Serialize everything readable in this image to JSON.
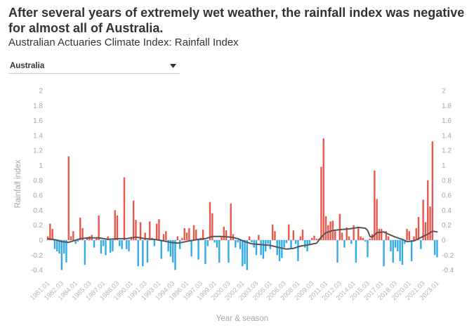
{
  "region_selector": {
    "selected": "Australia",
    "icon": "chevron-down-icon"
  },
  "colors": {
    "positive_bar": "#e9574c",
    "negative_bar": "#31aaea",
    "trend_line": "#555555",
    "zero_line": "#d6d6d6"
  },
  "chart_data": {
    "type": "bar",
    "title": "After several years of extremely wet weather, the rainfall index was negative for almost all of Australia.",
    "subtitle": "Australian Actuaries Climate Index: Rainfall Index",
    "xlabel": "Year & season",
    "ylabel": "Rainfall index",
    "ylim": [
      -0.4,
      2
    ],
    "yticks": [
      2,
      1.8,
      1.6,
      1.4,
      1.2,
      1,
      0.8,
      0.6,
      0.4,
      0.2,
      0,
      -0.2,
      -0.4
    ],
    "y_axis_sides": "left-and-right",
    "grid": false,
    "x_tick_step": 6,
    "x_ticks": [
      "1981.01",
      "1982.03",
      "1984.01",
      "1985.03",
      "1987.01",
      "1988.03",
      "1990.01",
      "1991.03",
      "1993.01",
      "1994.03",
      "1996.01",
      "1997.03",
      "1999.01",
      "2000.03",
      "2002.01",
      "2003.03",
      "2005.01",
      "2006.03",
      "2008.01",
      "2009.03",
      "2011.01",
      "2012.03",
      "2014.01",
      "2015.03",
      "2017.01",
      "2018.03",
      "2020.01",
      "2021.03",
      "2023.01"
    ],
    "values": [
      0.05,
      0.22,
      0.15,
      -0.12,
      -0.15,
      -0.18,
      -0.4,
      -0.18,
      -0.3,
      1.12,
      0.05,
      0.12,
      -0.05,
      -0.02,
      0.3,
      0.16,
      -0.33,
      0.04,
      0.05,
      0.07,
      -0.1,
      0.02,
      0.33,
      -0.18,
      -0.08,
      -0.2,
      0.05,
      -0.17,
      -0.15,
      0.4,
      0.33,
      -0.08,
      -0.12,
      0.84,
      -0.12,
      -0.15,
      0.04,
      0.53,
      0.27,
      -0.35,
      0.24,
      -0.35,
      0.1,
      -0.3,
      0.25,
      0.03,
      -0.08,
      0.22,
      0.28,
      -0.25,
      0.08,
      0.12,
      -0.15,
      -0.22,
      -0.3,
      -0.4,
      0.05,
      -0.12,
      0.03,
      0.16,
      0.1,
      0.16,
      -0.22,
      0.2,
      0.14,
      -0.26,
      0.03,
      0.14,
      -0.32,
      -0.08,
      0.51,
      0.36,
      -0.03,
      -0.1,
      -0.3,
      0.04,
      0.18,
      0.13,
      -0.3,
      0.49,
      0.08,
      -0.1,
      -0.03,
      -0.12,
      -0.35,
      -0.32,
      -0.4,
      0.05,
      -0.03,
      -0.1,
      -0.2,
      0.07,
      -0.2,
      -0.25,
      -0.15,
      -0.05,
      -0.12,
      0.21,
      0.12,
      -0.2,
      -0.28,
      -0.24,
      -0.1,
      -0.04,
      0.21,
      -0.12,
      0.13,
      -0.05,
      -0.28,
      0.05,
      0.14,
      -0.1,
      -0.15,
      -0.05,
      0.03,
      0.06,
      0.02,
      0.02,
      0.98,
      1.36,
      0.32,
      0.2,
      0.25,
      0.26,
      0.12,
      -0.3,
      0.35,
      0.1,
      -0.1,
      0.17,
      0.05,
      -0.05,
      0.2,
      -0.3,
      0.18,
      0.05,
      0.03,
      -0.02,
      -0.23,
      0.02,
      0.08,
      0.93,
      0.55,
      0.15,
      0.15,
      -0.35,
      0.12,
      0.05,
      -0.15,
      -0.3,
      -0.1,
      -0.15,
      -0.28,
      -0.33,
      -0.05,
      0.15,
      0.12,
      -0.28,
      0.05,
      0.16,
      0.31,
      -0.12,
      0.54,
      0.24,
      0.8,
      0.45,
      1.32,
      -0.2,
      -0.23
    ],
    "trend": [
      [
        0,
        0.02
      ],
      [
        4,
        0.0
      ],
      [
        6,
        -0.02
      ],
      [
        9,
        -0.03
      ],
      [
        11,
        -0.01
      ],
      [
        14,
        0.02
      ],
      [
        18,
        0.03
      ],
      [
        22,
        0.03
      ],
      [
        26,
        0.01
      ],
      [
        30,
        0.02
      ],
      [
        34,
        0.02
      ],
      [
        38,
        0.04
      ],
      [
        42,
        0.02
      ],
      [
        46,
        0.01
      ],
      [
        50,
        -0.01
      ],
      [
        53,
        -0.03
      ],
      [
        56,
        -0.04
      ],
      [
        58,
        -0.03
      ],
      [
        61,
        -0.01
      ],
      [
        65,
        0.01
      ],
      [
        68,
        0.02
      ],
      [
        71,
        0.05
      ],
      [
        75,
        0.05
      ],
      [
        79,
        0.04
      ],
      [
        82,
        0.02
      ],
      [
        85,
        -0.02
      ],
      [
        88,
        -0.05
      ],
      [
        92,
        -0.06
      ],
      [
        96,
        -0.07
      ],
      [
        100,
        -0.1
      ],
      [
        103,
        -0.12
      ],
      [
        106,
        -0.11
      ],
      [
        109,
        -0.08
      ],
      [
        113,
        -0.06
      ],
      [
        116,
        -0.04
      ],
      [
        118,
        0.04
      ],
      [
        120,
        0.1
      ],
      [
        123,
        0.13
      ],
      [
        126,
        0.14
      ],
      [
        130,
        0.15
      ],
      [
        134,
        0.17
      ],
      [
        137,
        0.16
      ],
      [
        138,
        0.13
      ],
      [
        139,
        0.05
      ],
      [
        140,
        0.04
      ],
      [
        142,
        0.1
      ],
      [
        145,
        0.11
      ],
      [
        147,
        0.08
      ],
      [
        150,
        0.04
      ],
      [
        153,
        0.01
      ],
      [
        155,
        -0.02
      ],
      [
        158,
        -0.01
      ],
      [
        160,
        0.02
      ],
      [
        162,
        0.05
      ],
      [
        164,
        0.08
      ],
      [
        166,
        0.12
      ],
      [
        168,
        0.11
      ]
    ]
  }
}
